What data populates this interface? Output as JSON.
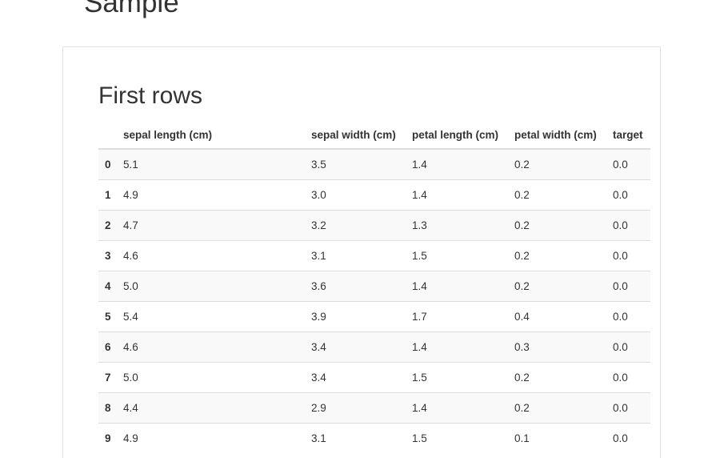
{
  "page": {
    "section_title": "Sample"
  },
  "panel": {
    "title": "First rows"
  },
  "table": {
    "columns": [
      "",
      "sepal length (cm)",
      "sepal width (cm)",
      "petal length (cm)",
      "petal width (cm)",
      "target"
    ],
    "rows": [
      {
        "index": "0",
        "cells": [
          "5.1",
          "3.5",
          "1.4",
          "0.2",
          "0.0"
        ]
      },
      {
        "index": "1",
        "cells": [
          "4.9",
          "3.0",
          "1.4",
          "0.2",
          "0.0"
        ]
      },
      {
        "index": "2",
        "cells": [
          "4.7",
          "3.2",
          "1.3",
          "0.2",
          "0.0"
        ]
      },
      {
        "index": "3",
        "cells": [
          "4.6",
          "3.1",
          "1.5",
          "0.2",
          "0.0"
        ]
      },
      {
        "index": "4",
        "cells": [
          "5.0",
          "3.6",
          "1.4",
          "0.2",
          "0.0"
        ]
      },
      {
        "index": "5",
        "cells": [
          "5.4",
          "3.9",
          "1.7",
          "0.4",
          "0.0"
        ]
      },
      {
        "index": "6",
        "cells": [
          "4.6",
          "3.4",
          "1.4",
          "0.3",
          "0.0"
        ]
      },
      {
        "index": "7",
        "cells": [
          "5.0",
          "3.4",
          "1.5",
          "0.2",
          "0.0"
        ]
      },
      {
        "index": "8",
        "cells": [
          "4.4",
          "2.9",
          "1.4",
          "0.2",
          "0.0"
        ]
      },
      {
        "index": "9",
        "cells": [
          "4.9",
          "3.1",
          "1.5",
          "0.1",
          "0.0"
        ]
      }
    ]
  }
}
